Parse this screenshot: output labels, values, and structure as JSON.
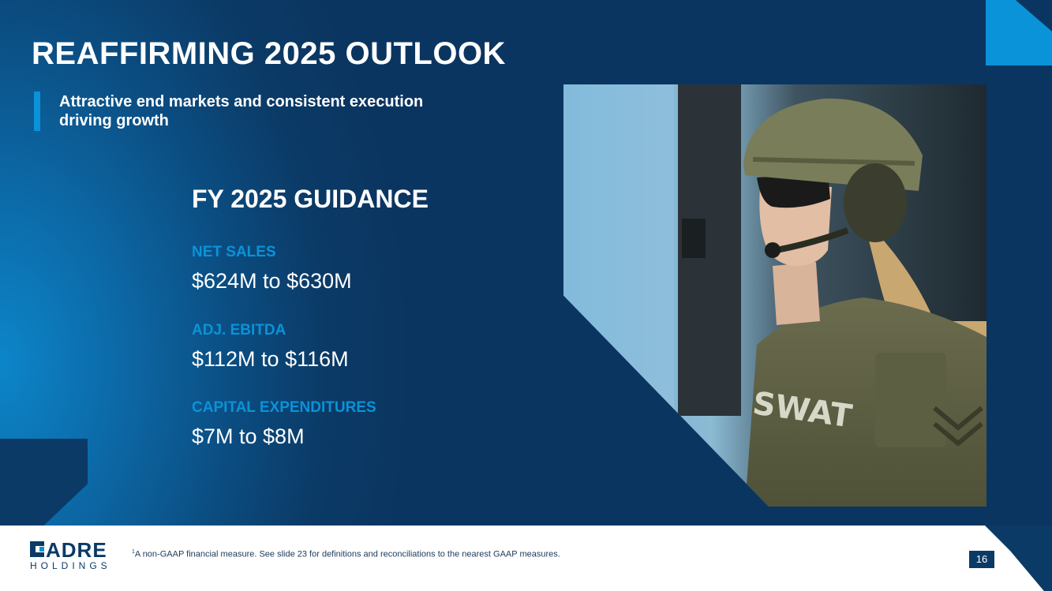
{
  "slide": {
    "title": "REAFFIRMING 2025 OUTLOOK",
    "subtitle": "Attractive end markets and consistent execution driving growth"
  },
  "guidance": {
    "heading": "FY 2025 GUIDANCE",
    "metrics": [
      {
        "label": "NET SALES",
        "value": "$624M to $630M"
      },
      {
        "label": "ADJ. EBITDA",
        "value": "$112M to $116M"
      },
      {
        "label": "CAPITAL EXPENDITURES",
        "value": "$7M to $8M"
      }
    ]
  },
  "footer": {
    "logo_name": "ADRE",
    "logo_sub": "HOLDINGS",
    "footnote_marker": "1",
    "footnote": "A non-GAAP financial measure. See slide 23 for definitions and reconciliations to the nearest GAAP measures.",
    "page_number": "16"
  },
  "colors": {
    "navy": "#0b3a66",
    "accent_blue": "#0a93d8"
  }
}
